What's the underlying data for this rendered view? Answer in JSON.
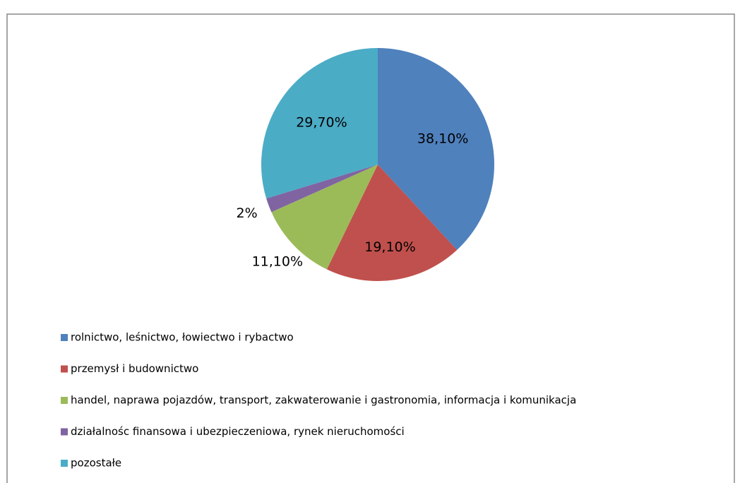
{
  "chart_data": {
    "type": "pie",
    "categories": [
      "rolnictwo,  leśnictwo,  łowiectwo i rybactwo",
      "przemysł i budownictwo",
      "handel, naprawa pojazdów, transport, zakwaterowanie i gastronomia, informacja i komunikacja",
      "działalnośc finansowa i ubezpieczeniowa, rynek nieruchomości",
      "pozostałe"
    ],
    "values": [
      38.1,
      19.1,
      11.1,
      2,
      29.7
    ],
    "value_labels": [
      "38,10%",
      "19,10%",
      "11,10%",
      "2%",
      "29,70%"
    ],
    "colors": [
      "#4f81bd",
      "#c0504d",
      "#9bbb59",
      "#8064a2",
      "#4bacc6"
    ],
    "legend": "bottom"
  }
}
